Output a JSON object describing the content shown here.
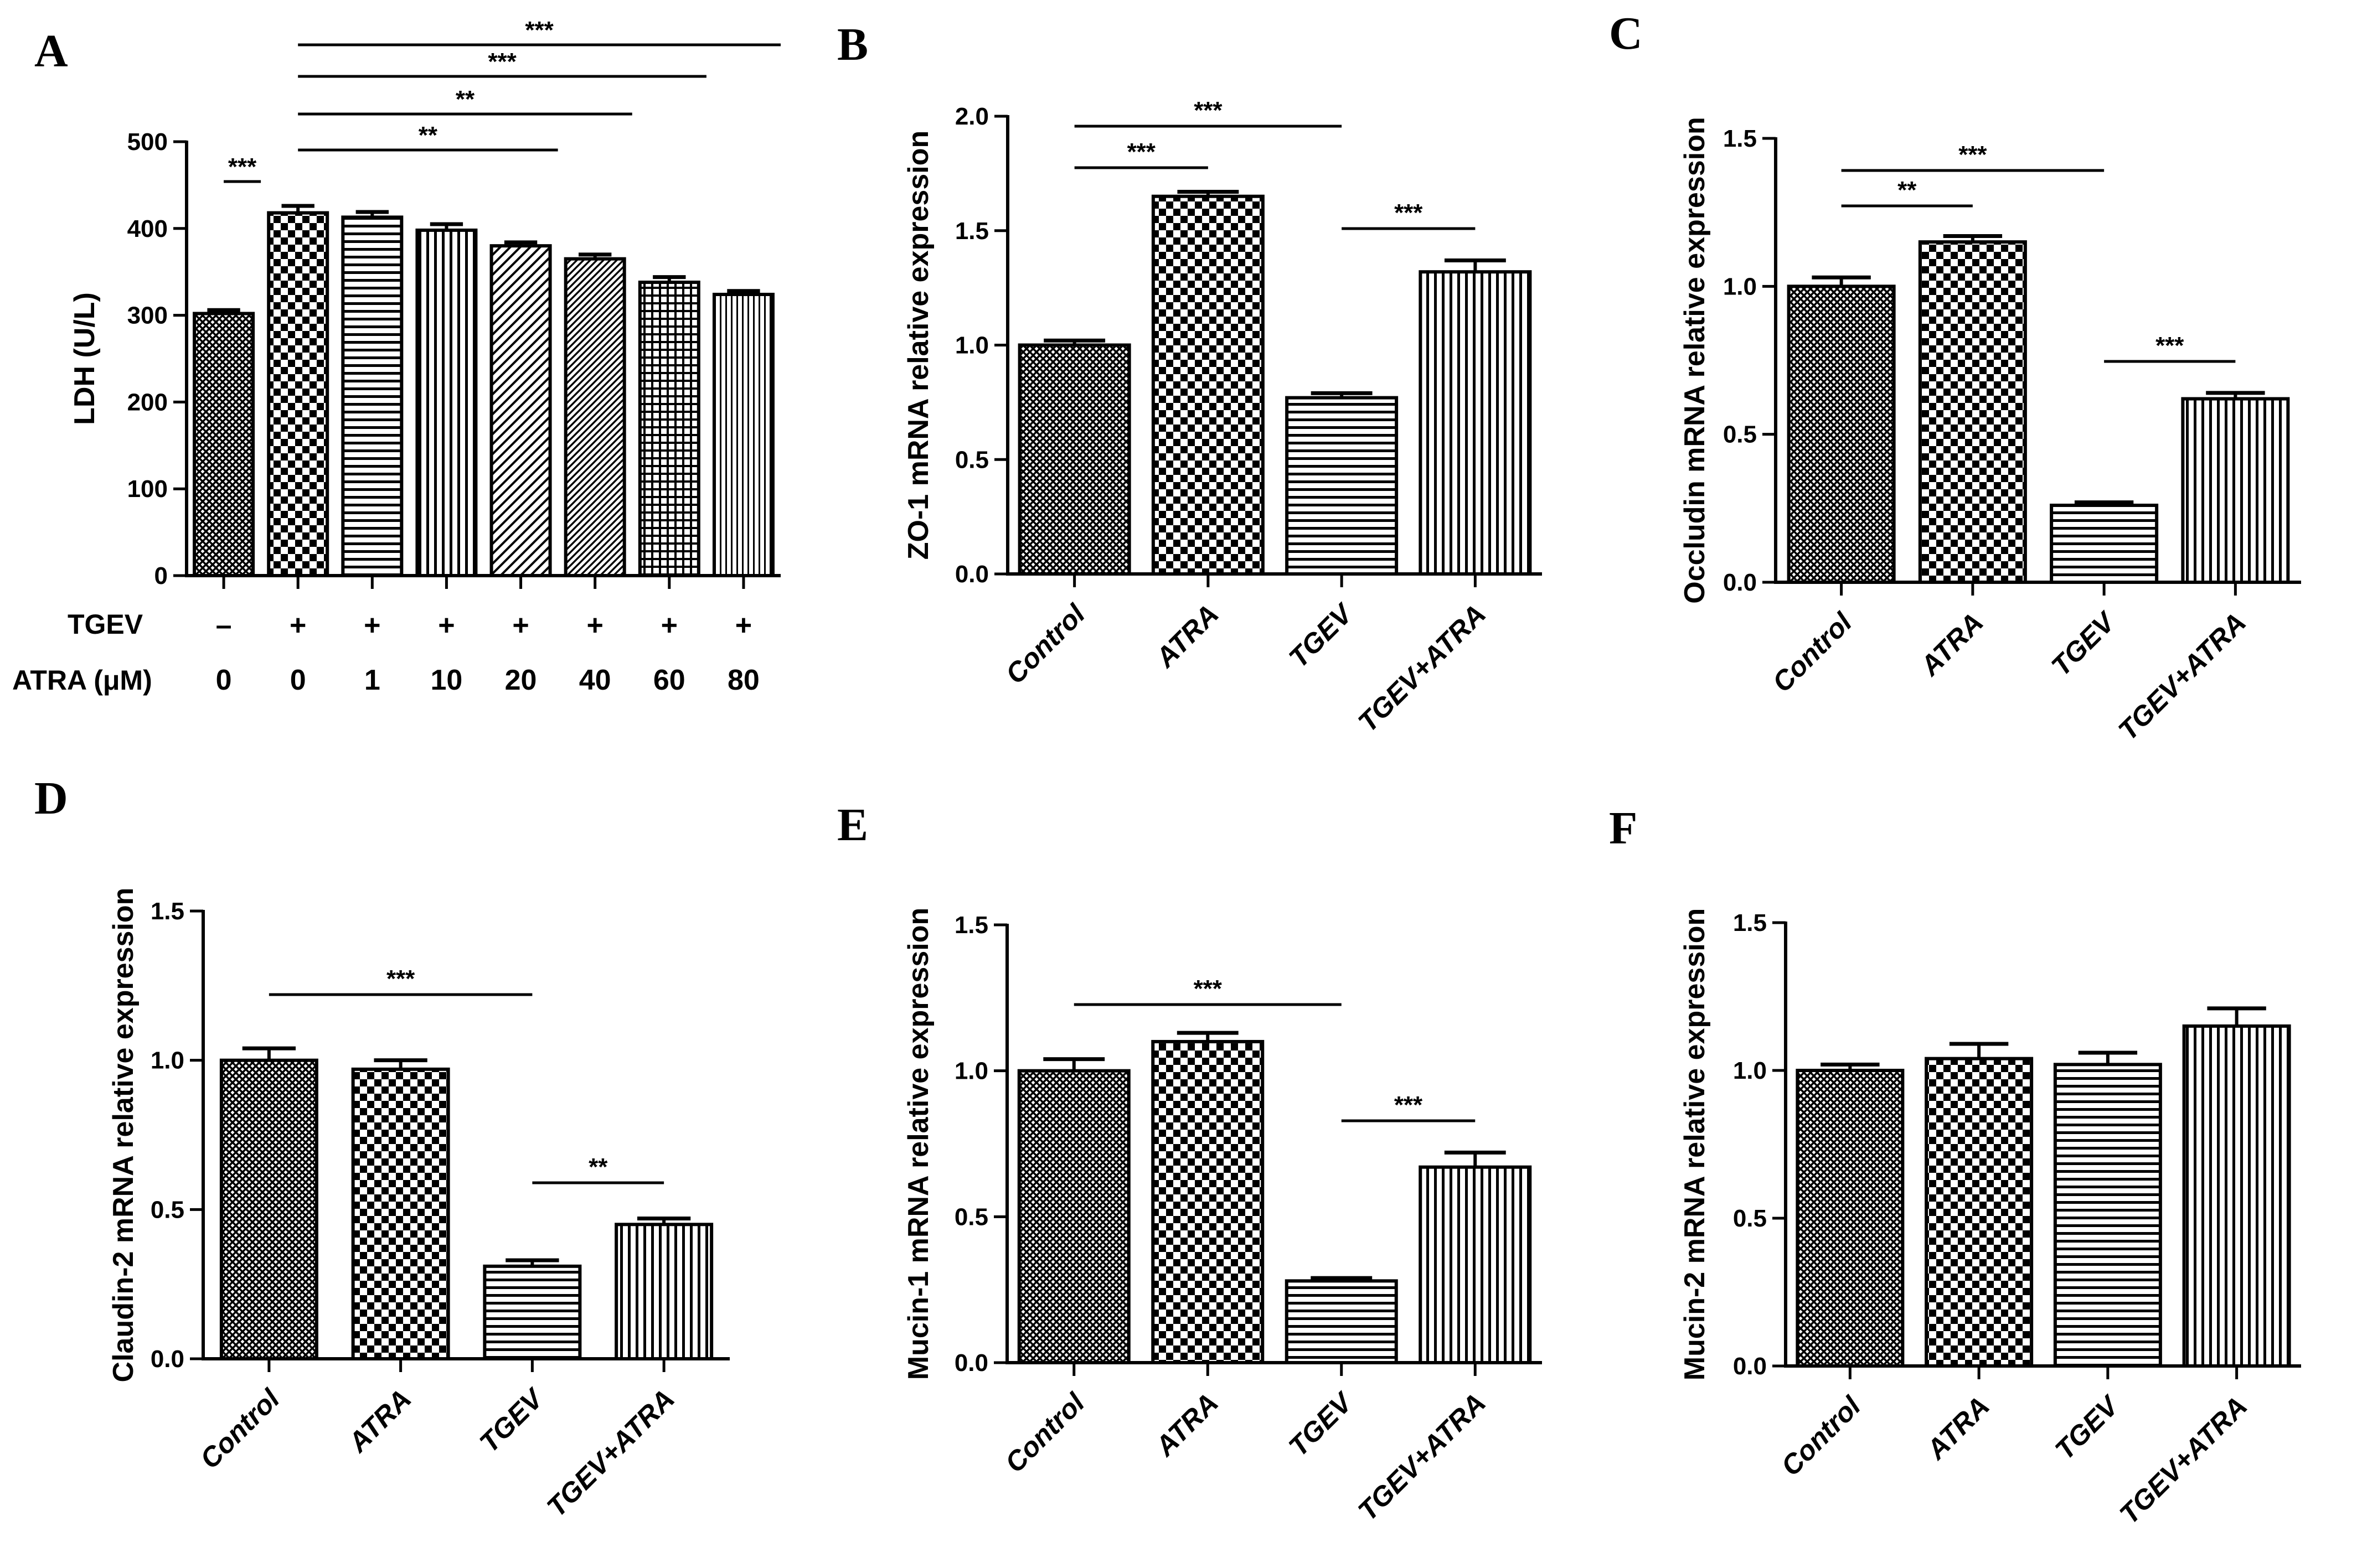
{
  "figure": {
    "background": "#ffffff",
    "ink": "#000000"
  },
  "chart_data": [
    {
      "panel": "A",
      "type": "bar",
      "ylabel": "LDH (U/L)",
      "ylim": [
        0,
        500
      ],
      "yticks": [
        "0",
        "100",
        "200",
        "300",
        "400",
        "500"
      ],
      "yticks_values": [
        0,
        100,
        200,
        300,
        400,
        500
      ],
      "row_labels": [
        "TGEV",
        "ATRA (μM)"
      ],
      "tgev_row": [
        "–",
        "+",
        "+",
        "+",
        "+",
        "+",
        "+",
        "+"
      ],
      "atra_row": [
        "0",
        "0",
        "1",
        "10",
        "20",
        "40",
        "60",
        "80"
      ],
      "values": [
        302,
        418,
        413,
        398,
        380,
        365,
        338,
        324
      ],
      "errors": [
        4,
        8,
        6,
        7,
        4,
        5,
        6,
        4
      ],
      "patterns": [
        "dense",
        "checker",
        "hlines",
        "vlines",
        "diag",
        "diag-dense",
        "grid",
        "vlines-fine"
      ],
      "significance": [
        {
          "from": 0,
          "to": 1,
          "label": "***"
        },
        {
          "from": 1,
          "to": 5,
          "label": "**"
        },
        {
          "from": 1,
          "to": 6,
          "label": "**"
        },
        {
          "from": 1,
          "to": 7,
          "label": "***"
        },
        {
          "from": 1,
          "to": 8,
          "label": "***"
        }
      ]
    },
    {
      "panel": "B",
      "type": "bar",
      "ylabel": "ZO-1 mRNA relative expression",
      "ylim": [
        0,
        2.0
      ],
      "yticks": [
        "0.0",
        "0.5",
        "1.0",
        "1.5",
        "2.0"
      ],
      "yticks_values": [
        0,
        0.5,
        1.0,
        1.5,
        2.0
      ],
      "categories": [
        "Control",
        "ATRA",
        "TGEV",
        "TGEV+ATRA"
      ],
      "values": [
        1.0,
        1.65,
        0.77,
        1.32
      ],
      "errors": [
        0.02,
        0.02,
        0.02,
        0.05
      ],
      "patterns": [
        "dense",
        "checker",
        "hlines",
        "vlines"
      ],
      "significance": [
        {
          "from": 0,
          "to": 1,
          "label": "***"
        },
        {
          "from": 0,
          "to": 2,
          "label": "***"
        },
        {
          "from": 2,
          "to": 3,
          "label": "***"
        }
      ]
    },
    {
      "panel": "C",
      "type": "bar",
      "ylabel": "Occludin mRNA relative expression",
      "ylim": [
        0,
        1.5
      ],
      "yticks": [
        "0.0",
        "0.5",
        "1.0",
        "1.5"
      ],
      "yticks_values": [
        0,
        0.5,
        1.0,
        1.5
      ],
      "categories": [
        "Control",
        "ATRA",
        "TGEV",
        "TGEV+ATRA"
      ],
      "values": [
        1.0,
        1.15,
        0.26,
        0.62
      ],
      "errors": [
        0.03,
        0.02,
        0.01,
        0.02
      ],
      "patterns": [
        "dense",
        "checker",
        "hlines",
        "vlines"
      ],
      "significance": [
        {
          "from": 0,
          "to": 1,
          "label": "**"
        },
        {
          "from": 0,
          "to": 2,
          "label": "***"
        },
        {
          "from": 2,
          "to": 3,
          "label": "***"
        }
      ]
    },
    {
      "panel": "D",
      "type": "bar",
      "ylabel": "Claudin-2 mRNA relative expression",
      "ylim": [
        0,
        1.5
      ],
      "yticks": [
        "0.0",
        "0.5",
        "1.0",
        "1.5"
      ],
      "yticks_values": [
        0,
        0.5,
        1.0,
        1.5
      ],
      "categories": [
        "Control",
        "ATRA",
        "TGEV",
        "TGEV+ATRA"
      ],
      "values": [
        1.0,
        0.97,
        0.31,
        0.45
      ],
      "errors": [
        0.04,
        0.03,
        0.02,
        0.02
      ],
      "patterns": [
        "dense",
        "checker",
        "hlines",
        "vlines"
      ],
      "significance": [
        {
          "from": 0,
          "to": 2,
          "label": "***"
        },
        {
          "from": 2,
          "to": 3,
          "label": "**"
        }
      ]
    },
    {
      "panel": "E",
      "type": "bar",
      "ylabel": "Mucin-1 mRNA relative expression",
      "ylim": [
        0,
        1.5
      ],
      "yticks": [
        "0.0",
        "0.5",
        "1.0",
        "1.5"
      ],
      "yticks_values": [
        0,
        0.5,
        1.0,
        1.5
      ],
      "categories": [
        "Control",
        "ATRA",
        "TGEV",
        "TGEV+ATRA"
      ],
      "values": [
        1.0,
        1.1,
        0.28,
        0.67
      ],
      "errors": [
        0.04,
        0.03,
        0.01,
        0.05
      ],
      "patterns": [
        "dense",
        "checker",
        "hlines",
        "vlines"
      ],
      "significance": [
        {
          "from": 0,
          "to": 2,
          "label": "***"
        },
        {
          "from": 2,
          "to": 3,
          "label": "***"
        }
      ]
    },
    {
      "panel": "F",
      "type": "bar",
      "ylabel": "Mucin-2 mRNA relative expression",
      "ylim": [
        0,
        1.5
      ],
      "yticks": [
        "0.0",
        "0.5",
        "1.0",
        "1.5"
      ],
      "yticks_values": [
        0,
        0.5,
        1.0,
        1.5
      ],
      "categories": [
        "Control",
        "ATRA",
        "TGEV",
        "TGEV+ATRA"
      ],
      "values": [
        1.0,
        1.04,
        1.02,
        1.15
      ],
      "errors": [
        0.02,
        0.05,
        0.04,
        0.06
      ],
      "patterns": [
        "dense",
        "checker",
        "hlines",
        "vlines"
      ],
      "significance": []
    }
  ]
}
